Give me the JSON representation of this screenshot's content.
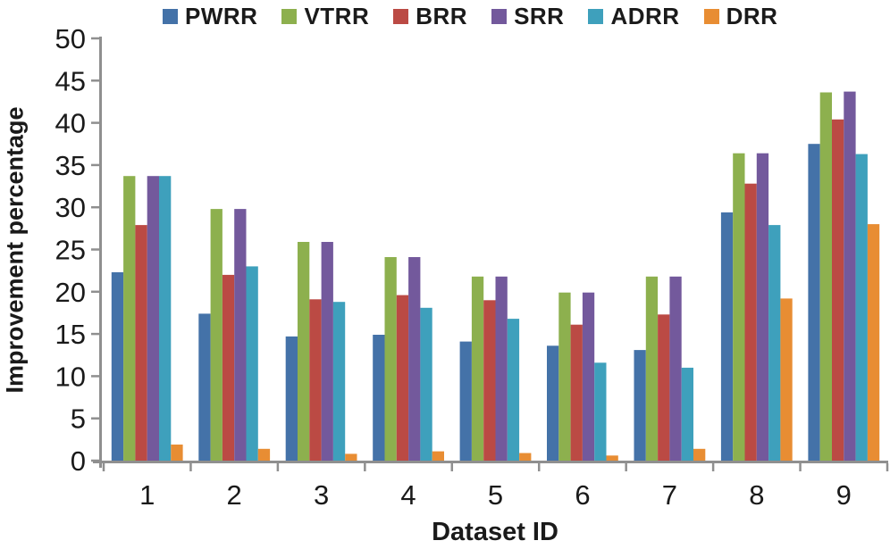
{
  "chart_data": {
    "type": "bar",
    "title": "",
    "xlabel": "Dataset ID",
    "ylabel": "Improvement percentage",
    "categories": [
      "1",
      "2",
      "3",
      "4",
      "5",
      "6",
      "7",
      "8",
      "9"
    ],
    "series": [
      {
        "name": "PWRR",
        "color": "#4472A8",
        "values": [
          22.3,
          17.4,
          14.7,
          14.9,
          14.1,
          13.6,
          13.1,
          29.4,
          37.5
        ]
      },
      {
        "name": "VTRR",
        "color": "#8DB04E",
        "values": [
          33.7,
          29.8,
          25.9,
          24.1,
          21.8,
          19.9,
          21.8,
          36.4,
          43.6
        ]
      },
      {
        "name": "BRR",
        "color": "#BB4A44",
        "values": [
          27.9,
          22.0,
          19.1,
          19.6,
          19.0,
          16.1,
          17.3,
          32.8,
          40.4
        ]
      },
      {
        "name": "SRR",
        "color": "#73599C",
        "values": [
          33.7,
          29.8,
          25.9,
          24.1,
          21.8,
          19.9,
          21.8,
          36.4,
          43.7
        ]
      },
      {
        "name": "ADRR",
        "color": "#3EA0BC",
        "values": [
          33.7,
          23.0,
          18.8,
          18.1,
          16.8,
          11.6,
          11.0,
          27.9,
          36.3
        ]
      },
      {
        "name": "DRR",
        "color": "#E88D33",
        "values": [
          1.9,
          1.4,
          0.8,
          1.1,
          0.9,
          0.6,
          1.4,
          19.2,
          28.0
        ]
      }
    ],
    "ylim": [
      0,
      50
    ],
    "ytick_step": 5,
    "grid": false,
    "legend_position": "top",
    "axis_color": "#8F8F8F",
    "text_color": "#1A1A1A"
  }
}
